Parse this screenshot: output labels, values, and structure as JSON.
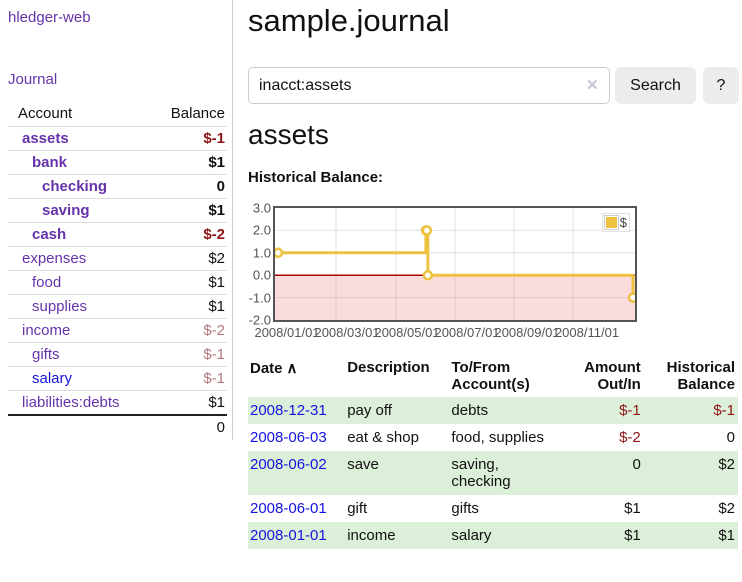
{
  "app": {
    "title": "hledger-web",
    "nav_journal": "Journal"
  },
  "sidebar": {
    "headers": {
      "account": "Account",
      "balance": "Balance"
    },
    "accounts": [
      {
        "name": "assets",
        "balance": "$-1"
      },
      {
        "name": "bank",
        "balance": "$1"
      },
      {
        "name": "checking",
        "balance": "0"
      },
      {
        "name": "saving",
        "balance": "$1"
      },
      {
        "name": "cash",
        "balance": "$-2"
      },
      {
        "name": "expenses",
        "balance": "$2"
      },
      {
        "name": "food",
        "balance": "$1"
      },
      {
        "name": "supplies",
        "balance": "$1"
      },
      {
        "name": "income",
        "balance": "$-2"
      },
      {
        "name": "gifts",
        "balance": "$-1"
      },
      {
        "name": "salary",
        "balance": "$-1"
      },
      {
        "name": "liabilities:debts",
        "balance": "$1"
      }
    ],
    "total": "0"
  },
  "main": {
    "title": "sample.journal",
    "search": {
      "value": "inacct:assets",
      "clear_icon": "✕",
      "search_label": "Search",
      "help_label": "?"
    },
    "account_heading": "assets",
    "chart_title": "Historical Balance:",
    "register": {
      "headers": {
        "date": "Date",
        "sort_icon": "∧",
        "description": "Description",
        "accounts": "To/From Account(s)",
        "amount": "Amount Out/In",
        "balance": "Historical Balance"
      },
      "rows": [
        {
          "date": "2008-12-31",
          "description": "pay off",
          "accounts": "debts",
          "amount": "$-1",
          "balance": "$-1"
        },
        {
          "date": "2008-06-03",
          "description": "eat & shop",
          "accounts": "food, supplies",
          "amount": "$-2",
          "balance": "0"
        },
        {
          "date": "2008-06-02",
          "description": "save",
          "accounts": "saving, checking",
          "amount": "0",
          "balance": "$2"
        },
        {
          "date": "2008-06-01",
          "description": "gift",
          "accounts": "gifts",
          "amount": "$1",
          "balance": "$2"
        },
        {
          "date": "2008-01-01",
          "description": "income",
          "accounts": "salary",
          "amount": "$1",
          "balance": "$1"
        }
      ]
    }
  },
  "chart_data": {
    "type": "line",
    "step": true,
    "title": "Historical Balance:",
    "series": [
      {
        "name": "$",
        "color": "#edc240",
        "points": [
          [
            "2008-01-01",
            1
          ],
          [
            "2008-06-01",
            2
          ],
          [
            "2008-06-02",
            2
          ],
          [
            "2008-06-03",
            0
          ],
          [
            "2008-12-31",
            -1
          ]
        ]
      }
    ],
    "ylim": [
      -2,
      3
    ],
    "y_ticks": [
      "3.0",
      "2.0",
      "1.0",
      "0.0",
      "-1.0",
      "-2.0"
    ],
    "x_ticks": [
      "2008/01/01",
      "2008/03/01",
      "2008/05/01",
      "2008/07/01",
      "2008/09/01",
      "2008/11/01"
    ],
    "legend": {
      "label": "$",
      "position": "top-right"
    },
    "grid": true,
    "zero_line_color": "#a40000",
    "negative_region_color": "#fbdcdc"
  },
  "colors": {
    "link_purple": "#6633aa",
    "link_blue": "#1414e0",
    "negative_red": "#8e1515",
    "muted_red": "#b1797c",
    "row_green": "#dcefd8",
    "series_gold": "#edc240"
  }
}
